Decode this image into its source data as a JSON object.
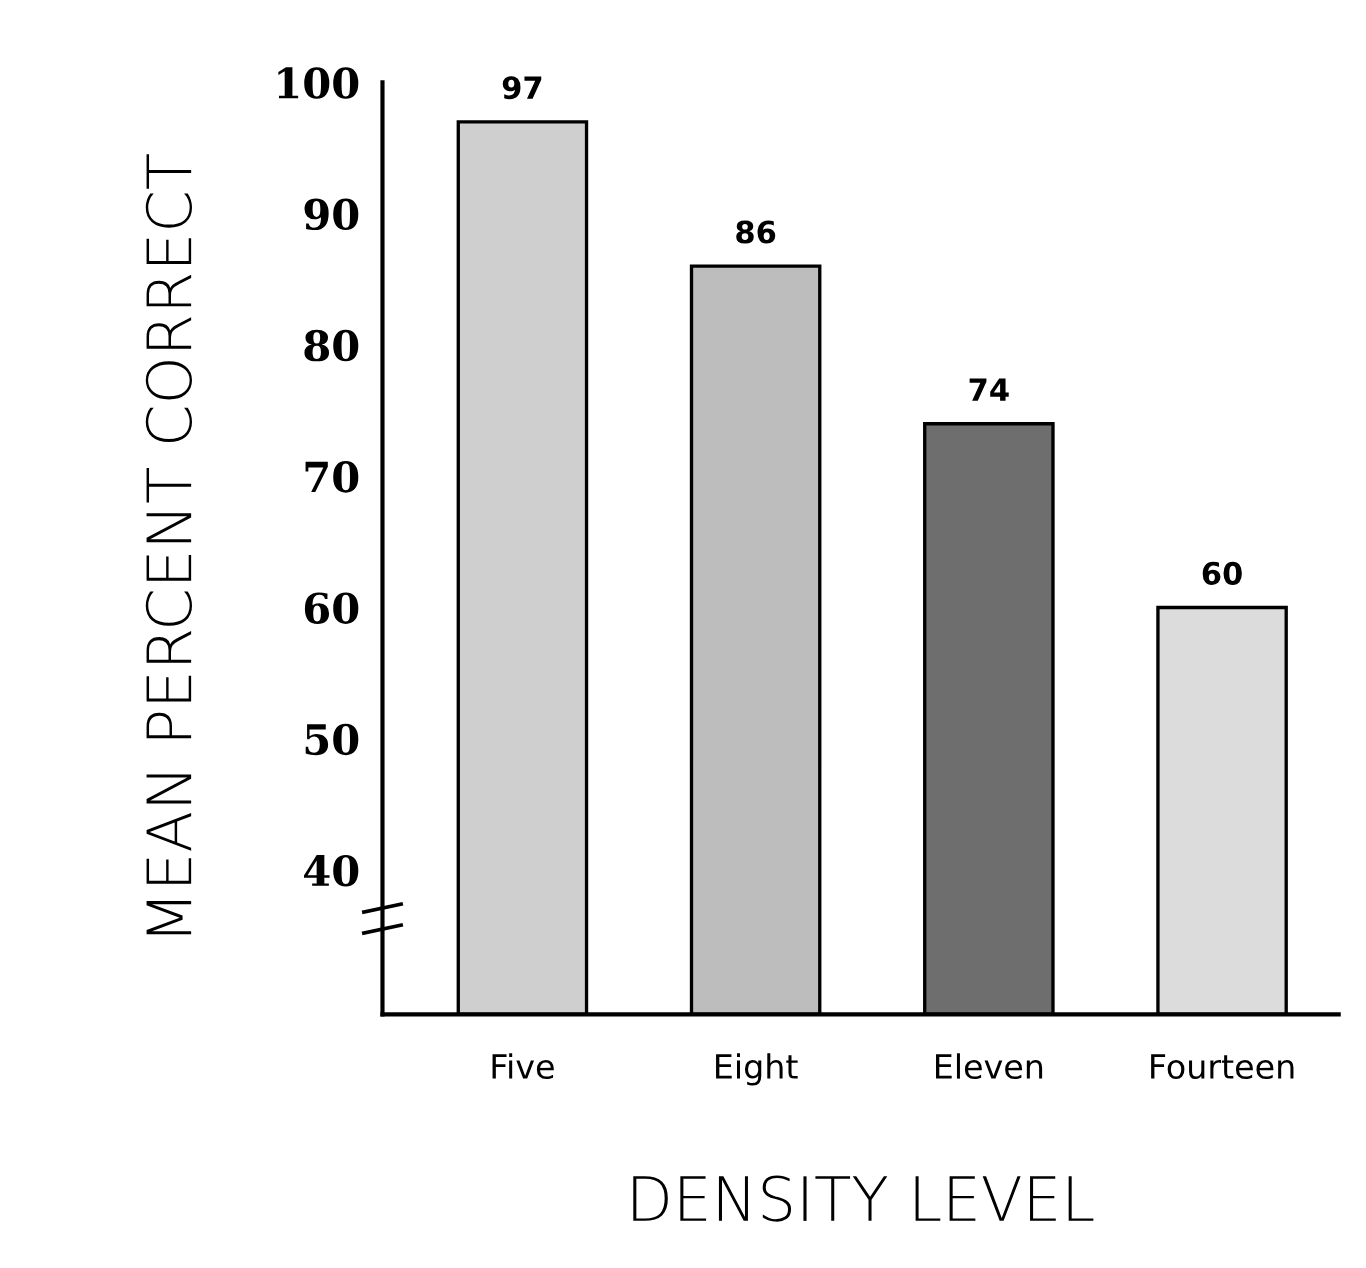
{
  "chart_data": {
    "type": "bar",
    "xlabel": "DENSITY LEVEL",
    "ylabel": "MEAN PERCENT CORRECT",
    "categories": [
      "Five",
      "Eight",
      "Eleven",
      "Fourteen"
    ],
    "values": [
      97,
      86,
      74,
      60
    ],
    "colors": [
      "#cfcfcf",
      "#bdbdbd",
      "#6e6e6e",
      "#dcdcdc"
    ],
    "ylim": [
      29,
      100
    ],
    "yticks": [
      40,
      50,
      60,
      70,
      80,
      90,
      100
    ],
    "grid": false,
    "data_labels": true
  }
}
